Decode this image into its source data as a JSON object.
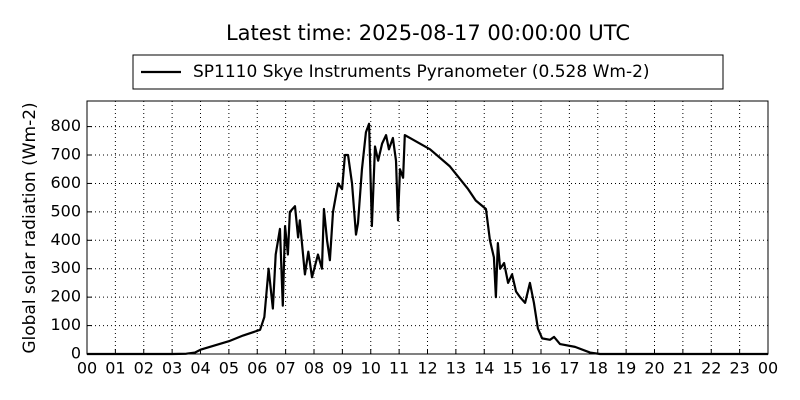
{
  "chart_data": {
    "type": "line",
    "title": "Latest time: 2025-08-17 00:00:00 UTC",
    "y_label": "Global solar radiation (Wm-2)",
    "x": [
      0,
      3.0,
      3.5,
      3.8,
      4.0,
      4.5,
      5.0,
      5.5,
      6.1,
      6.25,
      6.4,
      6.55,
      6.65,
      6.8,
      6.9,
      6.98,
      7.08,
      7.15,
      7.33,
      7.44,
      7.5,
      7.68,
      7.8,
      7.93,
      8.14,
      8.28,
      8.35,
      8.46,
      8.56,
      8.67,
      8.85,
      8.99,
      9.09,
      9.2,
      9.34,
      9.48,
      9.55,
      9.69,
      9.83,
      9.94,
      10.04,
      10.15,
      10.26,
      10.4,
      10.54,
      10.64,
      10.78,
      10.89,
      10.96,
      11.03,
      11.14,
      11.2,
      11.38,
      12.09,
      12.79,
      13.43,
      13.7,
      14.06,
      14.2,
      14.34,
      14.41,
      14.48,
      14.56,
      14.7,
      14.84,
      14.98,
      15.12,
      15.26,
      15.44,
      15.61,
      15.75,
      15.89,
      16.04,
      16.32,
      16.46,
      16.67,
      17.2,
      17.73,
      18.08,
      24
    ],
    "series": [
      {
        "name": "SP1110 Skye Instruments Pyranometer (0.528 Wm-2)",
        "color": "#000000",
        "values": [
          0,
          0,
          1,
          5,
          15,
          30,
          45,
          65,
          85,
          130,
          300,
          160,
          350,
          440,
          170,
          450,
          350,
          500,
          520,
          410,
          470,
          280,
          360,
          270,
          350,
          300,
          510,
          400,
          330,
          500,
          600,
          580,
          700,
          700,
          600,
          420,
          460,
          650,
          780,
          810,
          450,
          730,
          680,
          740,
          770,
          720,
          760,
          680,
          470,
          650,
          620,
          770,
          760,
          720,
          660,
          580,
          540,
          510,
          400,
          340,
          200,
          390,
          300,
          320,
          250,
          280,
          220,
          200,
          180,
          250,
          180,
          90,
          55,
          50,
          60,
          35,
          25,
          5,
          0,
          0
        ]
      }
    ],
    "xlim": [
      0,
      24
    ],
    "ylim": [
      0,
      890
    ],
    "xticks": [
      {
        "value": 0,
        "label": "00"
      },
      {
        "value": 1,
        "label": "01"
      },
      {
        "value": 2,
        "label": "02"
      },
      {
        "value": 3,
        "label": "03"
      },
      {
        "value": 4,
        "label": "04"
      },
      {
        "value": 5,
        "label": "05"
      },
      {
        "value": 6,
        "label": "06"
      },
      {
        "value": 7,
        "label": "07"
      },
      {
        "value": 8,
        "label": "08"
      },
      {
        "value": 9,
        "label": "09"
      },
      10,
      11,
      12,
      13,
      14,
      15,
      16,
      17,
      18,
      19,
      20,
      21,
      22,
      23,
      {
        "value": 24,
        "label": "00"
      }
    ],
    "yticks": [
      0,
      100,
      200,
      300,
      400,
      500,
      600,
      700,
      800
    ],
    "grid": true,
    "legend": "top"
  }
}
